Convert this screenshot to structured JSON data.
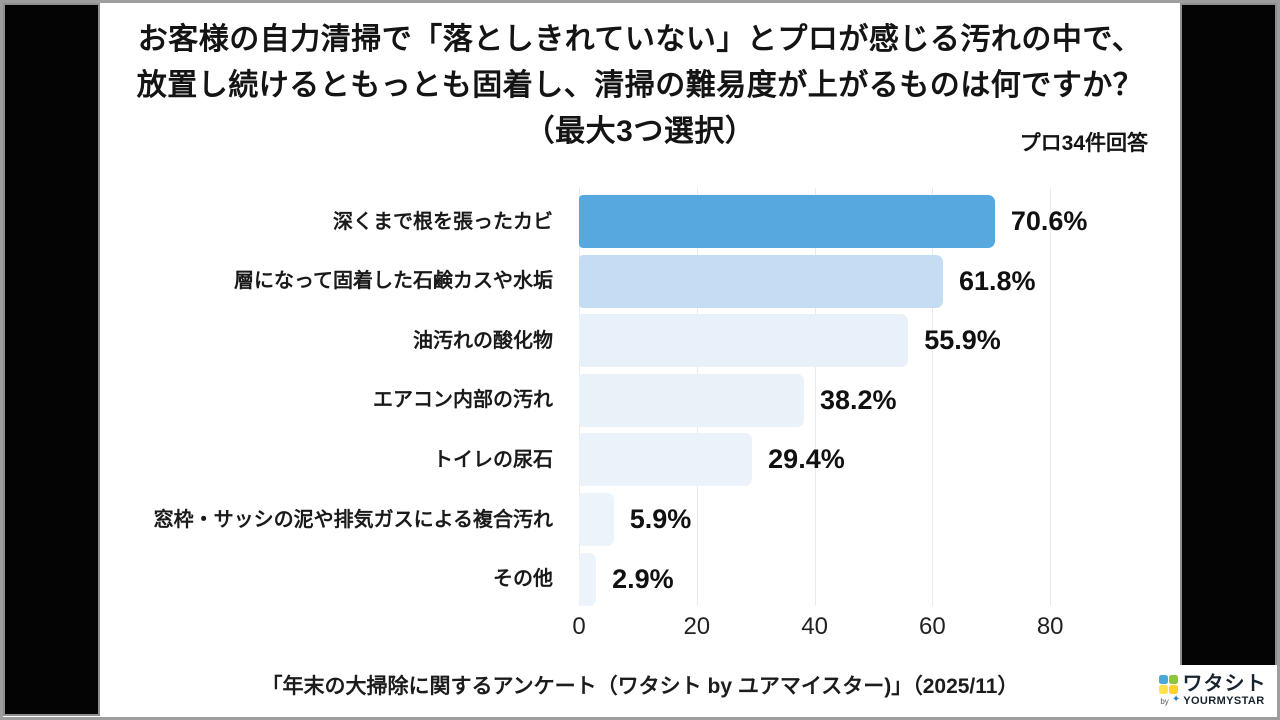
{
  "page": {
    "footer_source": "「年末の大掃除に関するアンケート（ワタシト by ユアマイスター)」（2025/11）"
  },
  "chart_data": {
    "type": "bar",
    "orientation": "horizontal",
    "title": "お客様の自力清掃で「落としきれていない」とプロが感じる汚れの中で、放置し続けるともっとも固着し、清掃の難易度が上がるものは何ですか？（最大3つ選択）",
    "title_lines": [
      "お客様の自力清掃で「落としきれていない」とプロが感じる汚れの中で、",
      "放置し続けるともっとも固着し、清掃の難易度が上がるものは何ですか？",
      "（最大3つ選択）"
    ],
    "sample_note": "プロ34件回答",
    "categories": [
      "深くまで根を張ったカビ",
      "層になって固着した石鹸カスや水垢",
      "油汚れの酸化物",
      "エアコン内部の汚れ",
      "トイレの尿石",
      "窓枠・サッシの泥や排気ガスによる複合汚れ",
      "その他"
    ],
    "values": [
      70.6,
      61.8,
      55.9,
      38.2,
      29.4,
      5.9,
      2.9
    ],
    "value_labels": [
      "70.6%",
      "61.8%",
      "55.9%",
      "38.2%",
      "29.4%",
      "5.9%",
      "2.9%"
    ],
    "bar_colors": [
      "#58a8e0",
      "#c5ddf2",
      "#e8f1fa",
      "#eaf2f9",
      "#ebf2f9",
      "#ecf3f9",
      "#edf3fa"
    ],
    "xlim": [
      0,
      90
    ],
    "xticks": [
      0,
      20,
      40,
      60,
      80
    ],
    "grid": true,
    "legend": false
  },
  "logo": {
    "brand": "ワタシト",
    "by_label": "by",
    "company": "YOURMYSTAR",
    "icon_colors": [
      "#4aa7d8",
      "#8cc63f",
      "#ffe34d",
      "#ffd329"
    ],
    "sparkle_color": "#2f7dbf"
  }
}
